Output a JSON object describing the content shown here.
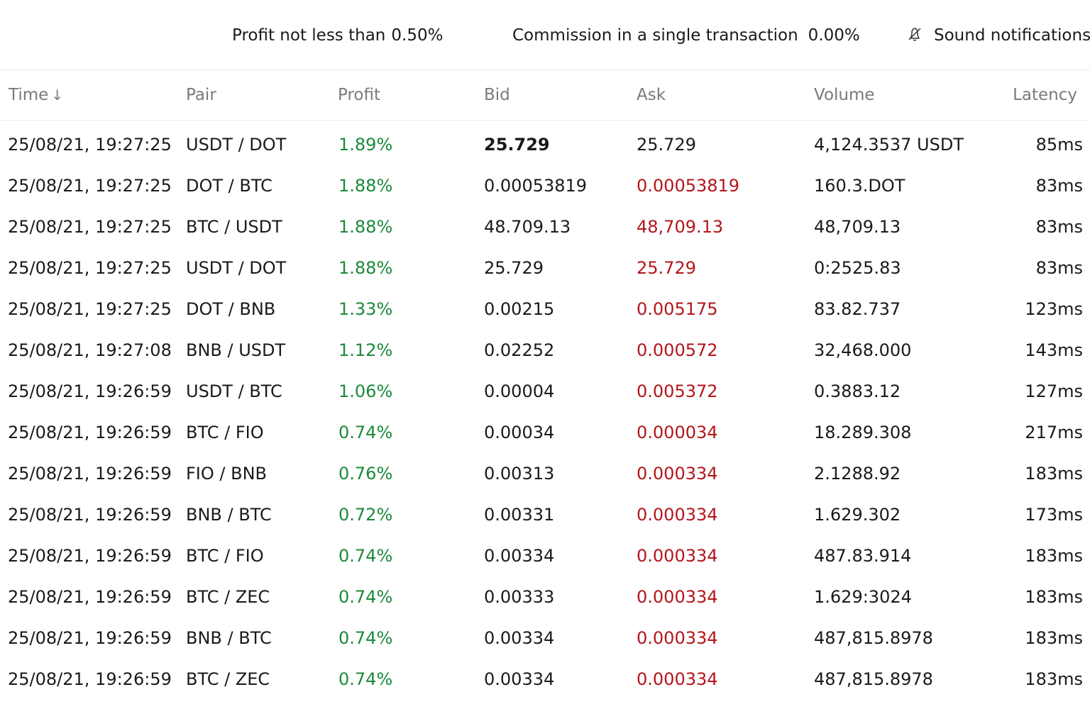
{
  "settings": {
    "profit_label": "Profit not less than",
    "profit_value": "0.50%",
    "commission_label": "Commission in a single transaction",
    "commission_value": "0.00%",
    "sound_label": "Sound notifications",
    "sound_icon": "bell-icon"
  },
  "table": {
    "headers": {
      "time": "Time",
      "time_sort_indicator": "↓",
      "pair": "Pair",
      "profit": "Profit",
      "bid": "Bid",
      "ask": "Ask",
      "volume": "Volume",
      "latency": "Latency"
    },
    "rows": [
      {
        "time": "25/08/21, 19:27:25",
        "pair": "USDT / DOT",
        "profit": "1.89%",
        "bid": "25.729",
        "ask": "25.729",
        "volume": "4,124.3537 USDT",
        "latency": "85ms"
      },
      {
        "time": "25/08/21, 19:27:25",
        "pair": "DOT / BTC",
        "profit": "1.88%",
        "bid": "0.00053819",
        "ask": "0.00053819",
        "volume": "160.3.DOT",
        "latency": "83ms"
      },
      {
        "time": "25/08/21, 19:27:25",
        "pair": "BTC / USDT",
        "profit": "1.88%",
        "bid": "48.709.13",
        "ask": "48,709.13",
        "volume": "48,709.13",
        "latency": "83ms"
      },
      {
        "time": "25/08/21, 19:27:25",
        "pair": "USDT / DOT",
        "profit": "1.88%",
        "bid": "25.729",
        "ask": "25.729",
        "volume": "0:2525.83",
        "latency": "83ms"
      },
      {
        "time": "25/08/21, 19:27:25",
        "pair": "DOT / BNB",
        "profit": "1.33%",
        "bid": "0.00215",
        "ask": "0.005175",
        "volume": "83.82.737",
        "latency": "123ms"
      },
      {
        "time": "25/08/21, 19:27:08",
        "pair": "BNB / USDT",
        "profit": "1.12%",
        "bid": "0.02252",
        "ask": "0.000572",
        "volume": "32,468.000",
        "latency": "143ms"
      },
      {
        "time": "25/08/21, 19:26:59",
        "pair": "USDT / BTC",
        "profit": "1.06%",
        "bid": "0.00004",
        "ask": "0.005372",
        "volume": "0.3883.12",
        "latency": "127ms"
      },
      {
        "time": "25/08/21, 19:26:59",
        "pair": "BTC / FIO",
        "profit": "0.74%",
        "bid": "0.00034",
        "ask": "0.000034",
        "volume": "18.289.308",
        "latency": "217ms"
      },
      {
        "time": "25/08/21, 19:26:59",
        "pair": "FIO / BNB",
        "profit": "0.76%",
        "bid": "0.00313",
        "ask": "0.000334",
        "volume": "2.1288.92",
        "latency": "183ms"
      },
      {
        "time": "25/08/21, 19:26:59",
        "pair": "BNB / BTC",
        "profit": "0.72%",
        "bid": "0.00331",
        "ask": "0.000334",
        "volume": "1.629.302",
        "latency": "173ms"
      },
      {
        "time": "25/08/21, 19:26:59",
        "pair": "BTC / FIO",
        "profit": "0.74%",
        "bid": "0.00334",
        "ask": "0.000334",
        "volume": "487.83.914",
        "latency": "183ms"
      },
      {
        "time": "25/08/21, 19:26:59",
        "pair": "BTC / ZEC",
        "profit": "0.74%",
        "bid": "0.00333",
        "ask": "0.000334",
        "volume": "1.629:3024",
        "latency": "183ms"
      },
      {
        "time": "25/08/21, 19:26:59",
        "pair": "BNB / BTC",
        "profit": "0.74%",
        "bid": "0.00334",
        "ask": "0.000334",
        "volume": "487,815.8978",
        "latency": "183ms"
      },
      {
        "time": "25/08/21, 19:26:59",
        "pair": "BTC / ZEC",
        "profit": "0.74%",
        "bid": "0.00334",
        "ask": "0.000334",
        "volume": "487,815.8978",
        "latency": "183ms"
      }
    ]
  },
  "colors": {
    "profit_green": "#1b8a3a",
    "ask_red": "#b3161b",
    "header_gray": "#7a7a7a"
  }
}
